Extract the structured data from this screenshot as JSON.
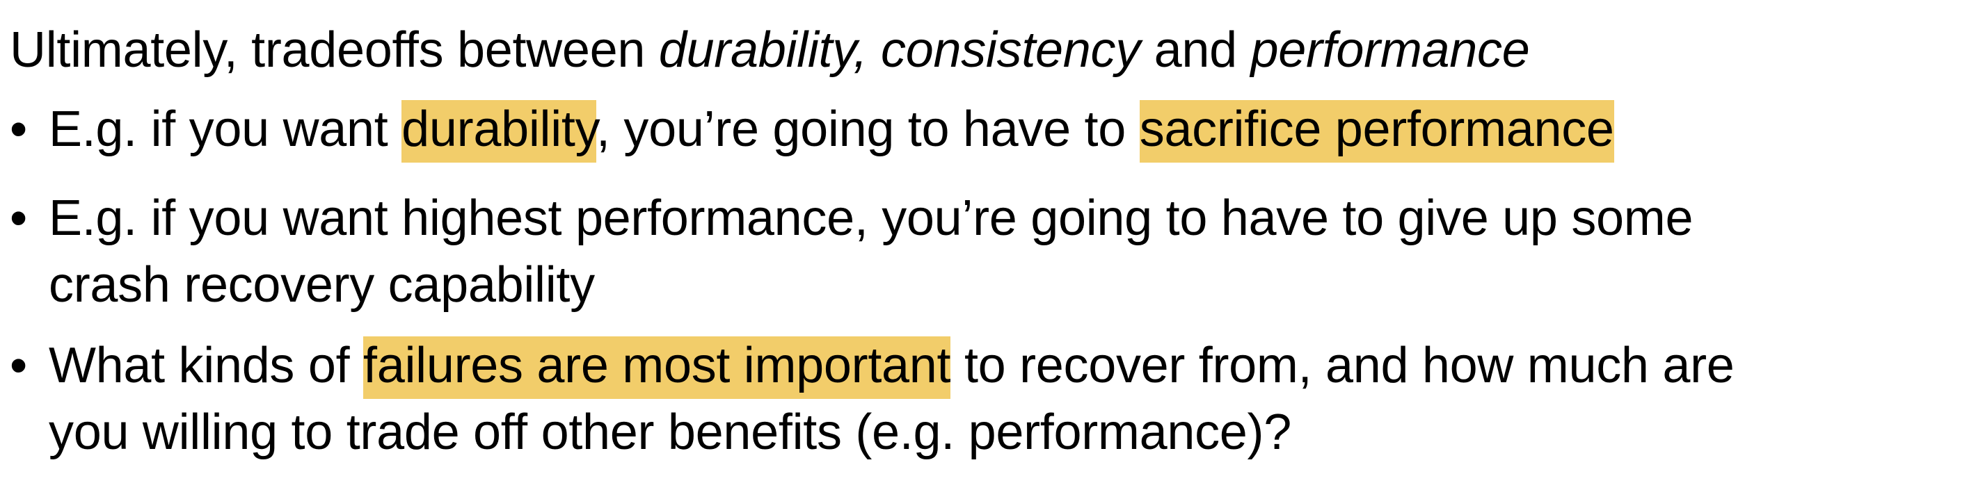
{
  "heading": {
    "part1": "Ultimately, tradeoffs between ",
    "durability": "durability, ",
    "consistency": "consistency",
    "part2": " and ",
    "performance": "performance"
  },
  "bullet_symbol": "•",
  "bullets": [
    {
      "pre": "E.g. if you want ",
      "hl1": "durability",
      "mid": ", you’re going to have to ",
      "hl2": "sacrifice performance"
    },
    {
      "line1": "E.g. if you want highest performance, you’re going to have to give up some",
      "line2": "crash recovery capability"
    },
    {
      "pre": "What kinds of ",
      "hl": "failures are most important",
      "post": " to recover from, and how much are",
      "line2": "you willing to trade off other benefits (e.g. performance)?"
    }
  ],
  "colors": {
    "highlight": "#f2cd6a",
    "text": "#000000",
    "background": "#ffffff"
  }
}
